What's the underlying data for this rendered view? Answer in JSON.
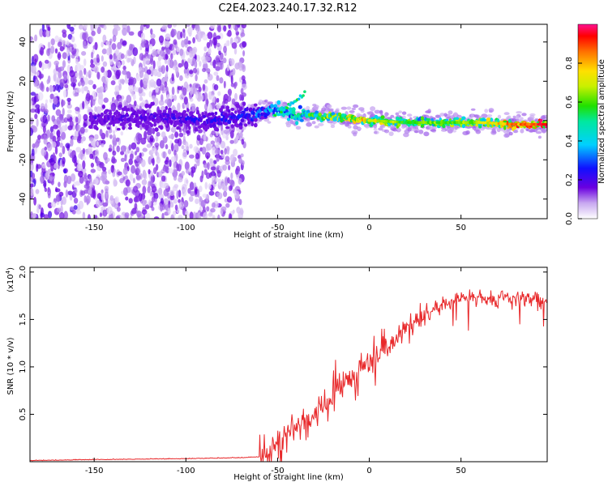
{
  "title": "C2E4.2023.240.17.32.R12",
  "chart_data": [
    {
      "type": "heatmap",
      "xlabel": "Height of straight line (km)",
      "ylabel": "Frequency (Hz)",
      "xlim": [
        -185,
        97
      ],
      "ylim": [
        -50,
        49
      ],
      "xticks": [
        -150,
        -100,
        -50,
        0,
        50
      ],
      "yticks": [
        -40,
        -20,
        0,
        20,
        40
      ],
      "colorbar": {
        "label": "Normalized spectral amplitude",
        "range": [
          0,
          1
        ],
        "ticks": [
          "0.0",
          "0.2",
          "0.4",
          "0.6",
          "0.8"
        ]
      },
      "ridge": {
        "description_points_x_km": [
          -150,
          -120,
          -90,
          -70,
          -60,
          -50,
          -40,
          -35,
          -20,
          0,
          20,
          40,
          60,
          80,
          95
        ],
        "frequency_hz": [
          1,
          2,
          0,
          2,
          4,
          6,
          2,
          3,
          2,
          0,
          -1,
          -1,
          -1,
          -2,
          -2
        ],
        "peak_amplitude": [
          0.2,
          0.22,
          0.25,
          0.3,
          0.35,
          0.45,
          0.55,
          0.6,
          0.7,
          0.8,
          0.6,
          0.65,
          0.7,
          0.9,
          0.95
        ]
      }
    },
    {
      "type": "line",
      "xlabel": "Height of straight line (km)",
      "ylabel": "SNR (10 * v/v)",
      "yscale_label": "(x10",
      "yscale_exp": "4",
      "yscale_close": ")",
      "xlim": [
        -185,
        97
      ],
      "ylim": [
        0,
        2.05
      ],
      "xticks": [
        -150,
        -100,
        -50,
        0,
        50
      ],
      "yticks": [
        "0.5",
        "1.0",
        "1.5",
        "2.0"
      ],
      "color": "#e8282a",
      "series": [
        {
          "name": "SNR",
          "x": [
            -185,
            -150,
            -100,
            -70,
            -60,
            -55,
            -50,
            -45,
            -40,
            -35,
            -30,
            -25,
            -20,
            -15,
            -10,
            -5,
            0,
            5,
            10,
            15,
            20,
            25,
            30,
            35,
            40,
            45,
            50,
            55,
            60,
            65,
            70,
            75,
            80,
            85,
            90,
            97
          ],
          "y": [
            0.01,
            0.02,
            0.03,
            0.04,
            0.05,
            0.1,
            0.2,
            0.3,
            0.35,
            0.4,
            0.5,
            0.6,
            0.7,
            0.8,
            0.9,
            1.0,
            1.05,
            1.15,
            1.2,
            1.3,
            1.4,
            1.48,
            1.55,
            1.6,
            1.65,
            1.7,
            1.72,
            1.72,
            1.74,
            1.73,
            1.72,
            1.74,
            1.73,
            1.72,
            1.71,
            1.69
          ]
        }
      ]
    }
  ]
}
